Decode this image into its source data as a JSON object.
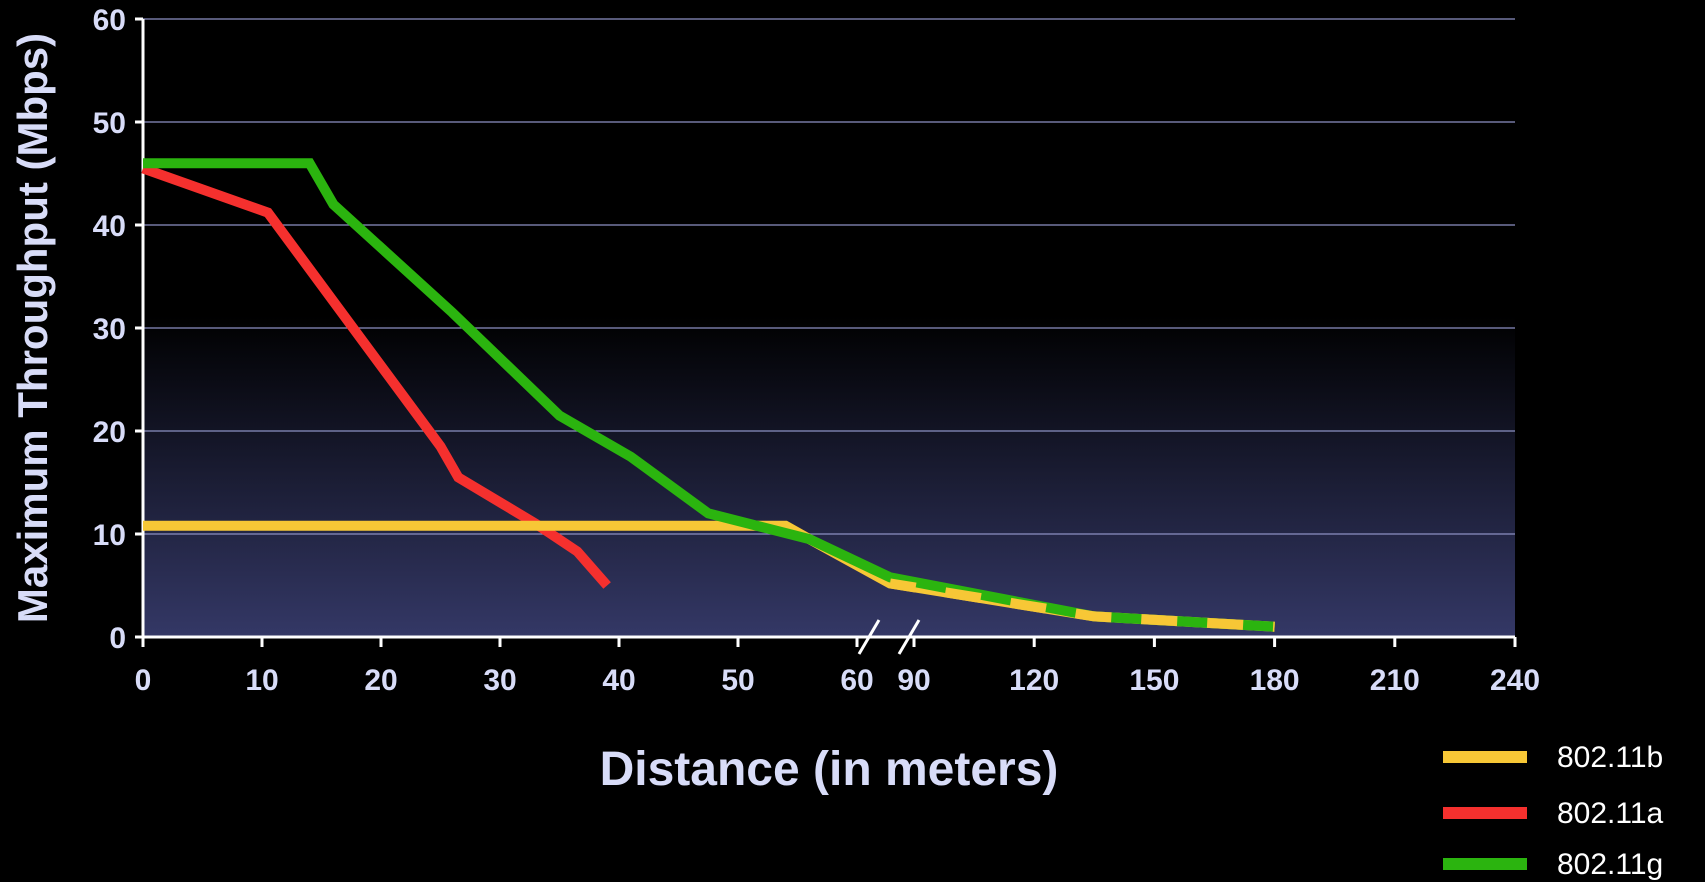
{
  "chart_data": {
    "type": "line",
    "title": "",
    "xlabel": "Distance (in meters)",
    "ylabel": "Maximum Throughput (Mbps)",
    "ylim": [
      0,
      60
    ],
    "yticks": [
      0,
      10,
      20,
      30,
      40,
      50,
      60
    ],
    "xticks": [
      0,
      10,
      20,
      30,
      40,
      50,
      60,
      90,
      120,
      150,
      180,
      210,
      240
    ],
    "x_axis_break_between": [
      60,
      90
    ],
    "grid": "horizontal",
    "legend_position": "bottom-right",
    "series": [
      {
        "name": "802.11b",
        "color": "#f7c736",
        "points": [
          [
            0,
            10.8
          ],
          [
            54,
            10.8
          ],
          [
            56,
            9.5
          ],
          [
            84,
            5.2
          ],
          [
            135,
            2.0
          ],
          [
            180,
            1.0
          ]
        ]
      },
      {
        "name": "802.11a",
        "color": "#f5302e",
        "points": [
          [
            0,
            45.5
          ],
          [
            10.5,
            41.2
          ],
          [
            25,
            18.5
          ],
          [
            26.5,
            15.5
          ],
          [
            33,
            11
          ],
          [
            36.5,
            8.3
          ],
          [
            39,
            5
          ]
        ]
      },
      {
        "name": "802.11g",
        "color": "#2bb40f",
        "points": [
          [
            0,
            46
          ],
          [
            14,
            46
          ],
          [
            16,
            42
          ],
          [
            26,
            31.5
          ],
          [
            35,
            21.5
          ],
          [
            41,
            17.5
          ],
          [
            47.5,
            12
          ],
          [
            56,
            9.5
          ],
          [
            84,
            5.8
          ],
          [
            135,
            2.0
          ],
          [
            180,
            1.0
          ]
        ]
      }
    ]
  }
}
